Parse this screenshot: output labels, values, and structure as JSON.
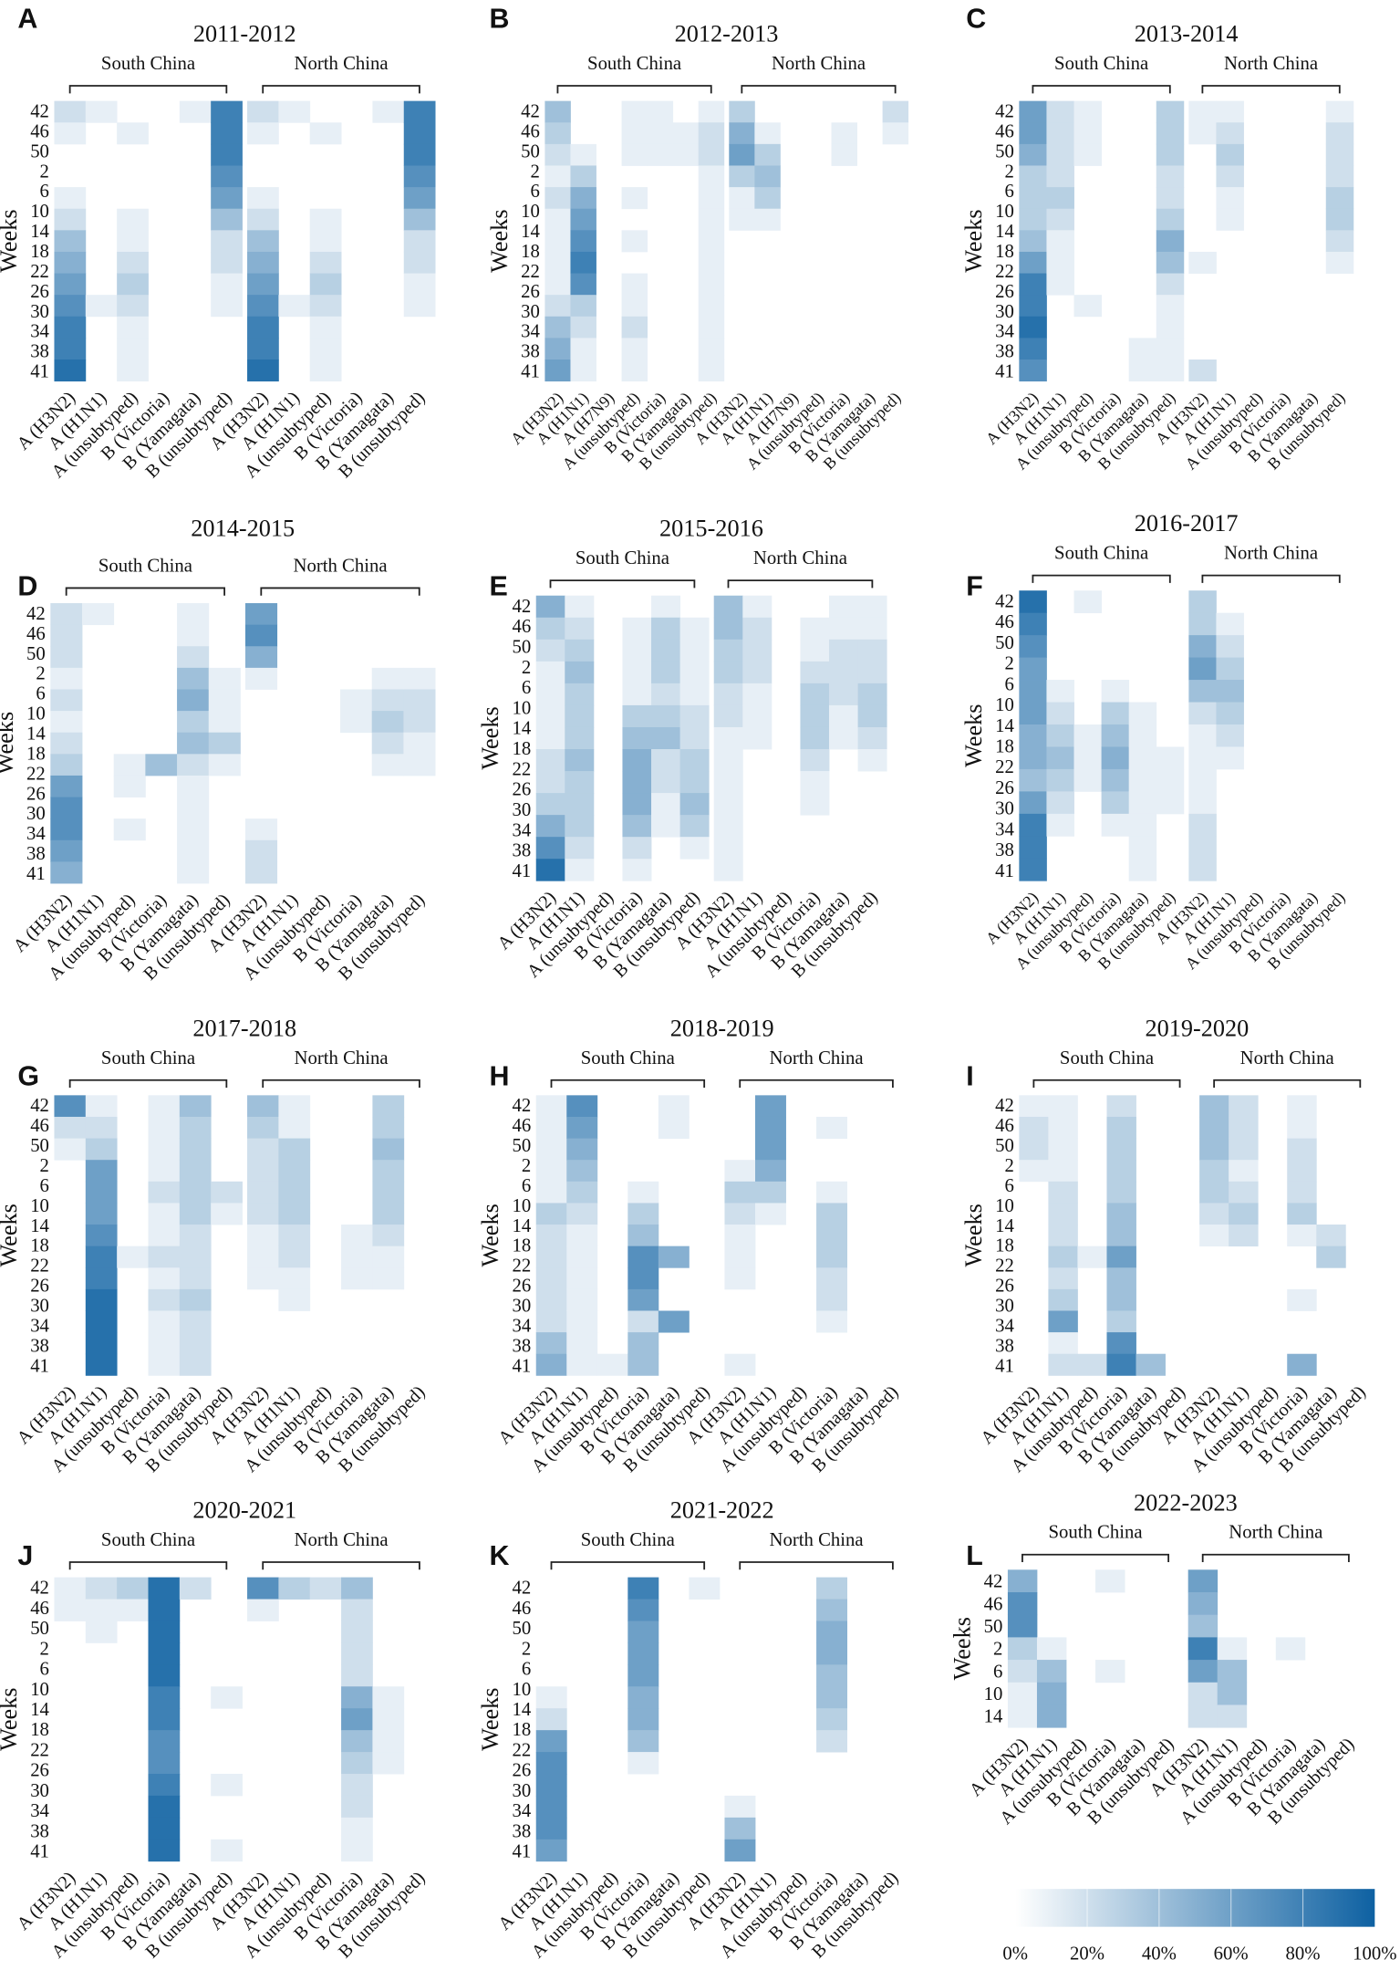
{
  "chart_data": {
    "type": "heatmap",
    "value_unit": "percent positive (digit strings in tenths: each digit = value/10, columns run week-bins of 4 weeks)",
    "ylabel": "Weeks",
    "region_labels": [
      "South China",
      "North China"
    ],
    "colorbar": {
      "ticks": [
        "0%",
        "20%",
        "40%",
        "60%",
        "80%",
        "100%"
      ],
      "range": [
        0,
        100
      ],
      "low_color": "#ffffff",
      "high_color": "#0e61a2"
    },
    "panels": [
      {
        "letter": "A",
        "title": "2011-2012",
        "yticks": [
          "42",
          "46",
          "50",
          "2",
          "6",
          "10",
          "14",
          "18",
          "22",
          "26",
          "30",
          "34",
          "38",
          "41"
        ],
        "columns": [
          "A (H3N2)",
          "A (H1N1)",
          "A (unsubtyped)",
          "B (Victoria)",
          "B (Yamagata)",
          "B (unsubtyped)"
        ],
        "south": [
          "2100124567889",
          "1000000001000",
          "0100011232111",
          "0000000000000",
          "1000000000000",
          "8887642211000"
        ],
        "north": [
          "2100124567889",
          "1000000001000",
          "0100011232111",
          "0000000000000",
          "1000000000000",
          "8887642211000"
        ]
      },
      {
        "letter": "B",
        "title": "2012-2013",
        "yticks": [
          "42",
          "46",
          "50",
          "2",
          "6",
          "10",
          "14",
          "18",
          "22",
          "26",
          "30",
          "34",
          "38",
          "41"
        ],
        "columns": [
          "A (H3N2)",
          "A (H1N1)",
          "A (H7N9)",
          "A (unsubtyped)",
          "B (Victoria)",
          "B (Yamagata)",
          "B (unsubtyped)"
        ],
        "south": [
          "4321211112456",
          "0013567873211",
          "0000000000000",
          "1110101011211",
          "1110000000000",
          "0110000000000",
          "1221111111111"
        ],
        "north": [
          "3563110000000",
          "0134310000000",
          "0000000000000",
          "0000000000000",
          "0110000000000",
          "0000000000000",
          "2100000000000"
        ]
      },
      {
        "letter": "C",
        "title": "2013-2014",
        "yticks": [
          "42",
          "46",
          "50",
          "2",
          "6",
          "10",
          "14",
          "18",
          "22",
          "26",
          "30",
          "34",
          "38",
          "41"
        ],
        "columns": [
          "A (H3N2)",
          "A (H1N1)",
          "A (unsubtyped)",
          "B (Victoria)",
          "B (Yamagata)",
          "B (unsubtyped)"
        ],
        "south": [
          "6653334688987",
          "2222321110000",
          "1110000001000",
          "0000000000000",
          "0000000000011",
          "3332235421111"
        ],
        "north": [
          "1100000100002",
          "1232110000000",
          "0000000000000",
          "0000000000000",
          "0000000000000",
          "1222332100000"
        ]
      },
      {
        "letter": "D",
        "title": "2014-2015",
        "yticks": [
          "42",
          "46",
          "50",
          "2",
          "6",
          "10",
          "14",
          "18",
          "22",
          "26",
          "30",
          "34",
          "38",
          "41"
        ],
        "columns": [
          "A (H3N2)",
          "A (H1N1)",
          "A (unsubtyped)",
          "B (Victoria)",
          "B (Yamagata)",
          "B (unsubtyped)"
        ],
        "south": [
          "2221212367765",
          "1000000000000",
          "0000000110100",
          "0000000400000",
          "1124534211111",
          "0001113100000"
        ],
        "north": [
          "6751000000122",
          "0000000000000",
          "0000000000000",
          "0000110000000",
          "0001232100000",
          "0001221100000"
        ]
      },
      {
        "letter": "E",
        "title": "2015-2016",
        "yticks": [
          "42",
          "46",
          "50",
          "2",
          "6",
          "10",
          "14",
          "18",
          "22",
          "26",
          "30",
          "34",
          "38",
          "41"
        ],
        "columns": [
          "A (H3N2)",
          "A (H1N1)",
          "A (unsubtyped)",
          "B (Victoria)",
          "B (Yamagata)",
          "B (unsubtyped)"
        ],
        "south": [
          "5321111223579",
          "1234333433321",
          "0000000000000",
          "0111134555421",
          "1333234221100",
          "0111122334310"
        ],
        "north": [
          "4433221111111",
          "1222111000000",
          "0000000000000",
          "0112333211000",
          "1122211000000",
          "1122332100000"
        ]
      },
      {
        "letter": "F",
        "title": "2016-2017",
        "yticks": [
          "42",
          "46",
          "50",
          "2",
          "6",
          "10",
          "14",
          "18",
          "22",
          "26",
          "30",
          "34",
          "38",
          "41"
        ],
        "columns": [
          "A (H3N2)",
          "A (H1N1)",
          "A (unsubtyped)",
          "B (Victoria)",
          "B (Yamagata)",
          "B (unsubtyped)"
        ],
        "south": [
          "9876665546888",
          "0000123432100",
          "1000001110000",
          "0000134543100",
          "0000011111111",
          "0000000111000"
        ],
        "north": [
          "3356421111222",
          "0123432100000",
          "0000000000000",
          "0000000000000",
          "0000000000000",
          "0000000000000"
        ]
      },
      {
        "letter": "G",
        "title": "2017-2018",
        "yticks": [
          "42",
          "46",
          "50",
          "2",
          "6",
          "10",
          "14",
          "18",
          "22",
          "26",
          "30",
          "34",
          "38",
          "41"
        ],
        "columns": [
          "A (H3N2)",
          "A (H1N1)",
          "A (unsubtyped)",
          "B (Victoria)",
          "B (Yamagata)",
          "B (unsubtyped)"
        ],
        "south": [
          "7210000000000",
          "1236667889999",
          "0000000100000",
          "1111211212111",
          "4333332223222",
          "0000210000000"
        ],
        "north": [
          "4322221110000",
          "1133332211000",
          "0000000000000",
          "0000001110000",
          "3343332110000",
          "0000000000000"
        ]
      },
      {
        "letter": "H",
        "title": "2018-2019",
        "yticks": [
          "42",
          "46",
          "50",
          "2",
          "6",
          "10",
          "14",
          "18",
          "22",
          "26",
          "30",
          "34",
          "38",
          "41"
        ],
        "columns": [
          "A (H3N2)",
          "A (H1N1)",
          "A (unsubtyped)",
          "B (Victoria)",
          "B (Yamagata)",
          "B (unsubtyped)"
        ],
        "south": [
          "1111132222245",
          "7654321111111",
          "0000000000001",
          "0000134776244",
          "1100000500600",
          "0000000000000"
        ],
        "north": [
          "0001321110001",
          "6665310000000",
          "0000000000000",
          "0100133322100",
          "0000000000000",
          "0000000000000"
        ]
      },
      {
        "letter": "I",
        "title": "2019-2020",
        "yticks": [
          "42",
          "46",
          "50",
          "2",
          "6",
          "10",
          "14",
          "18",
          "22",
          "26",
          "30",
          "34",
          "38",
          "41"
        ],
        "columns": [
          "A (H3N2)",
          "A (H1N1)",
          "A (unsubtyped)",
          "B (Victoria)",
          "B (Yamagata)",
          "B (unsubtyped)"
        ],
        "south": [
          "1221000000000",
          "1111222323612",
          "0000000100002",
          "2333344644378",
          "0000000000004",
          "0000000000000"
        ],
        "north": [
          "4443321000000",
          "2221232000000",
          "0000000000000",
          "1122231001005",
          "0000002300000",
          "0000000000000"
        ]
      },
      {
        "letter": "J",
        "title": "2020-2021",
        "yticks": [
          "42",
          "46",
          "50",
          "2",
          "6",
          "10",
          "14",
          "18",
          "22",
          "26",
          "30",
          "34",
          "38",
          "41"
        ],
        "columns": [
          "A (H3N2)",
          "A (H1N1)",
          "A (unsubtyped)",
          "B (Victoria)",
          "B (Yamagata)",
          "B (unsubtyped)"
        ],
        "south": [
          "1100000000000",
          "2110000000000",
          "3100000000000",
          "9999988778999",
          "2000000000000",
          "0000010001001"
        ],
        "north": [
          "7100000000000",
          "3000000000000",
          "2000000000000",
          "4222256432211",
          "0000011110000",
          "0000000000000"
        ]
      },
      {
        "letter": "K",
        "title": "2021-2022",
        "yticks": [
          "42",
          "46",
          "50",
          "2",
          "6",
          "10",
          "14",
          "18",
          "22",
          "26",
          "30",
          "34",
          "38",
          "41"
        ],
        "columns": [
          "A (H3N2)",
          "A (H1N1)",
          "A (unsubtyped)",
          "B (Victoria)",
          "B (Yamagata)",
          "B (unsubtyped)"
        ],
        "south": [
          "0000012677776",
          "0000000000000",
          "0000000000000",
          "8766655410000",
          "0000000000000",
          "1000000000000"
        ],
        "north": [
          "0000000000146",
          "0000000000000",
          "0000000000000",
          "3455443200000",
          "0000000000000",
          "0000000000000"
        ]
      },
      {
        "letter": "L",
        "title": "2022-2023",
        "yticks": [
          "42",
          "46",
          "50",
          "2",
          "6",
          "10",
          "14"
        ],
        "columns": [
          "A (H3N2)",
          "A (H1N1)",
          "A (unsubtyped)",
          "B (Victoria)",
          "B (Yamagata)",
          "B (unsubtyped)"
        ],
        "south": [
          "5773211",
          "0001455",
          "0000000",
          "1000100",
          "0000000",
          "0000000"
        ],
        "north": [
          "6548622",
          "0001442",
          "0000000",
          "0001000",
          "0000000",
          "0000000"
        ]
      }
    ]
  }
}
